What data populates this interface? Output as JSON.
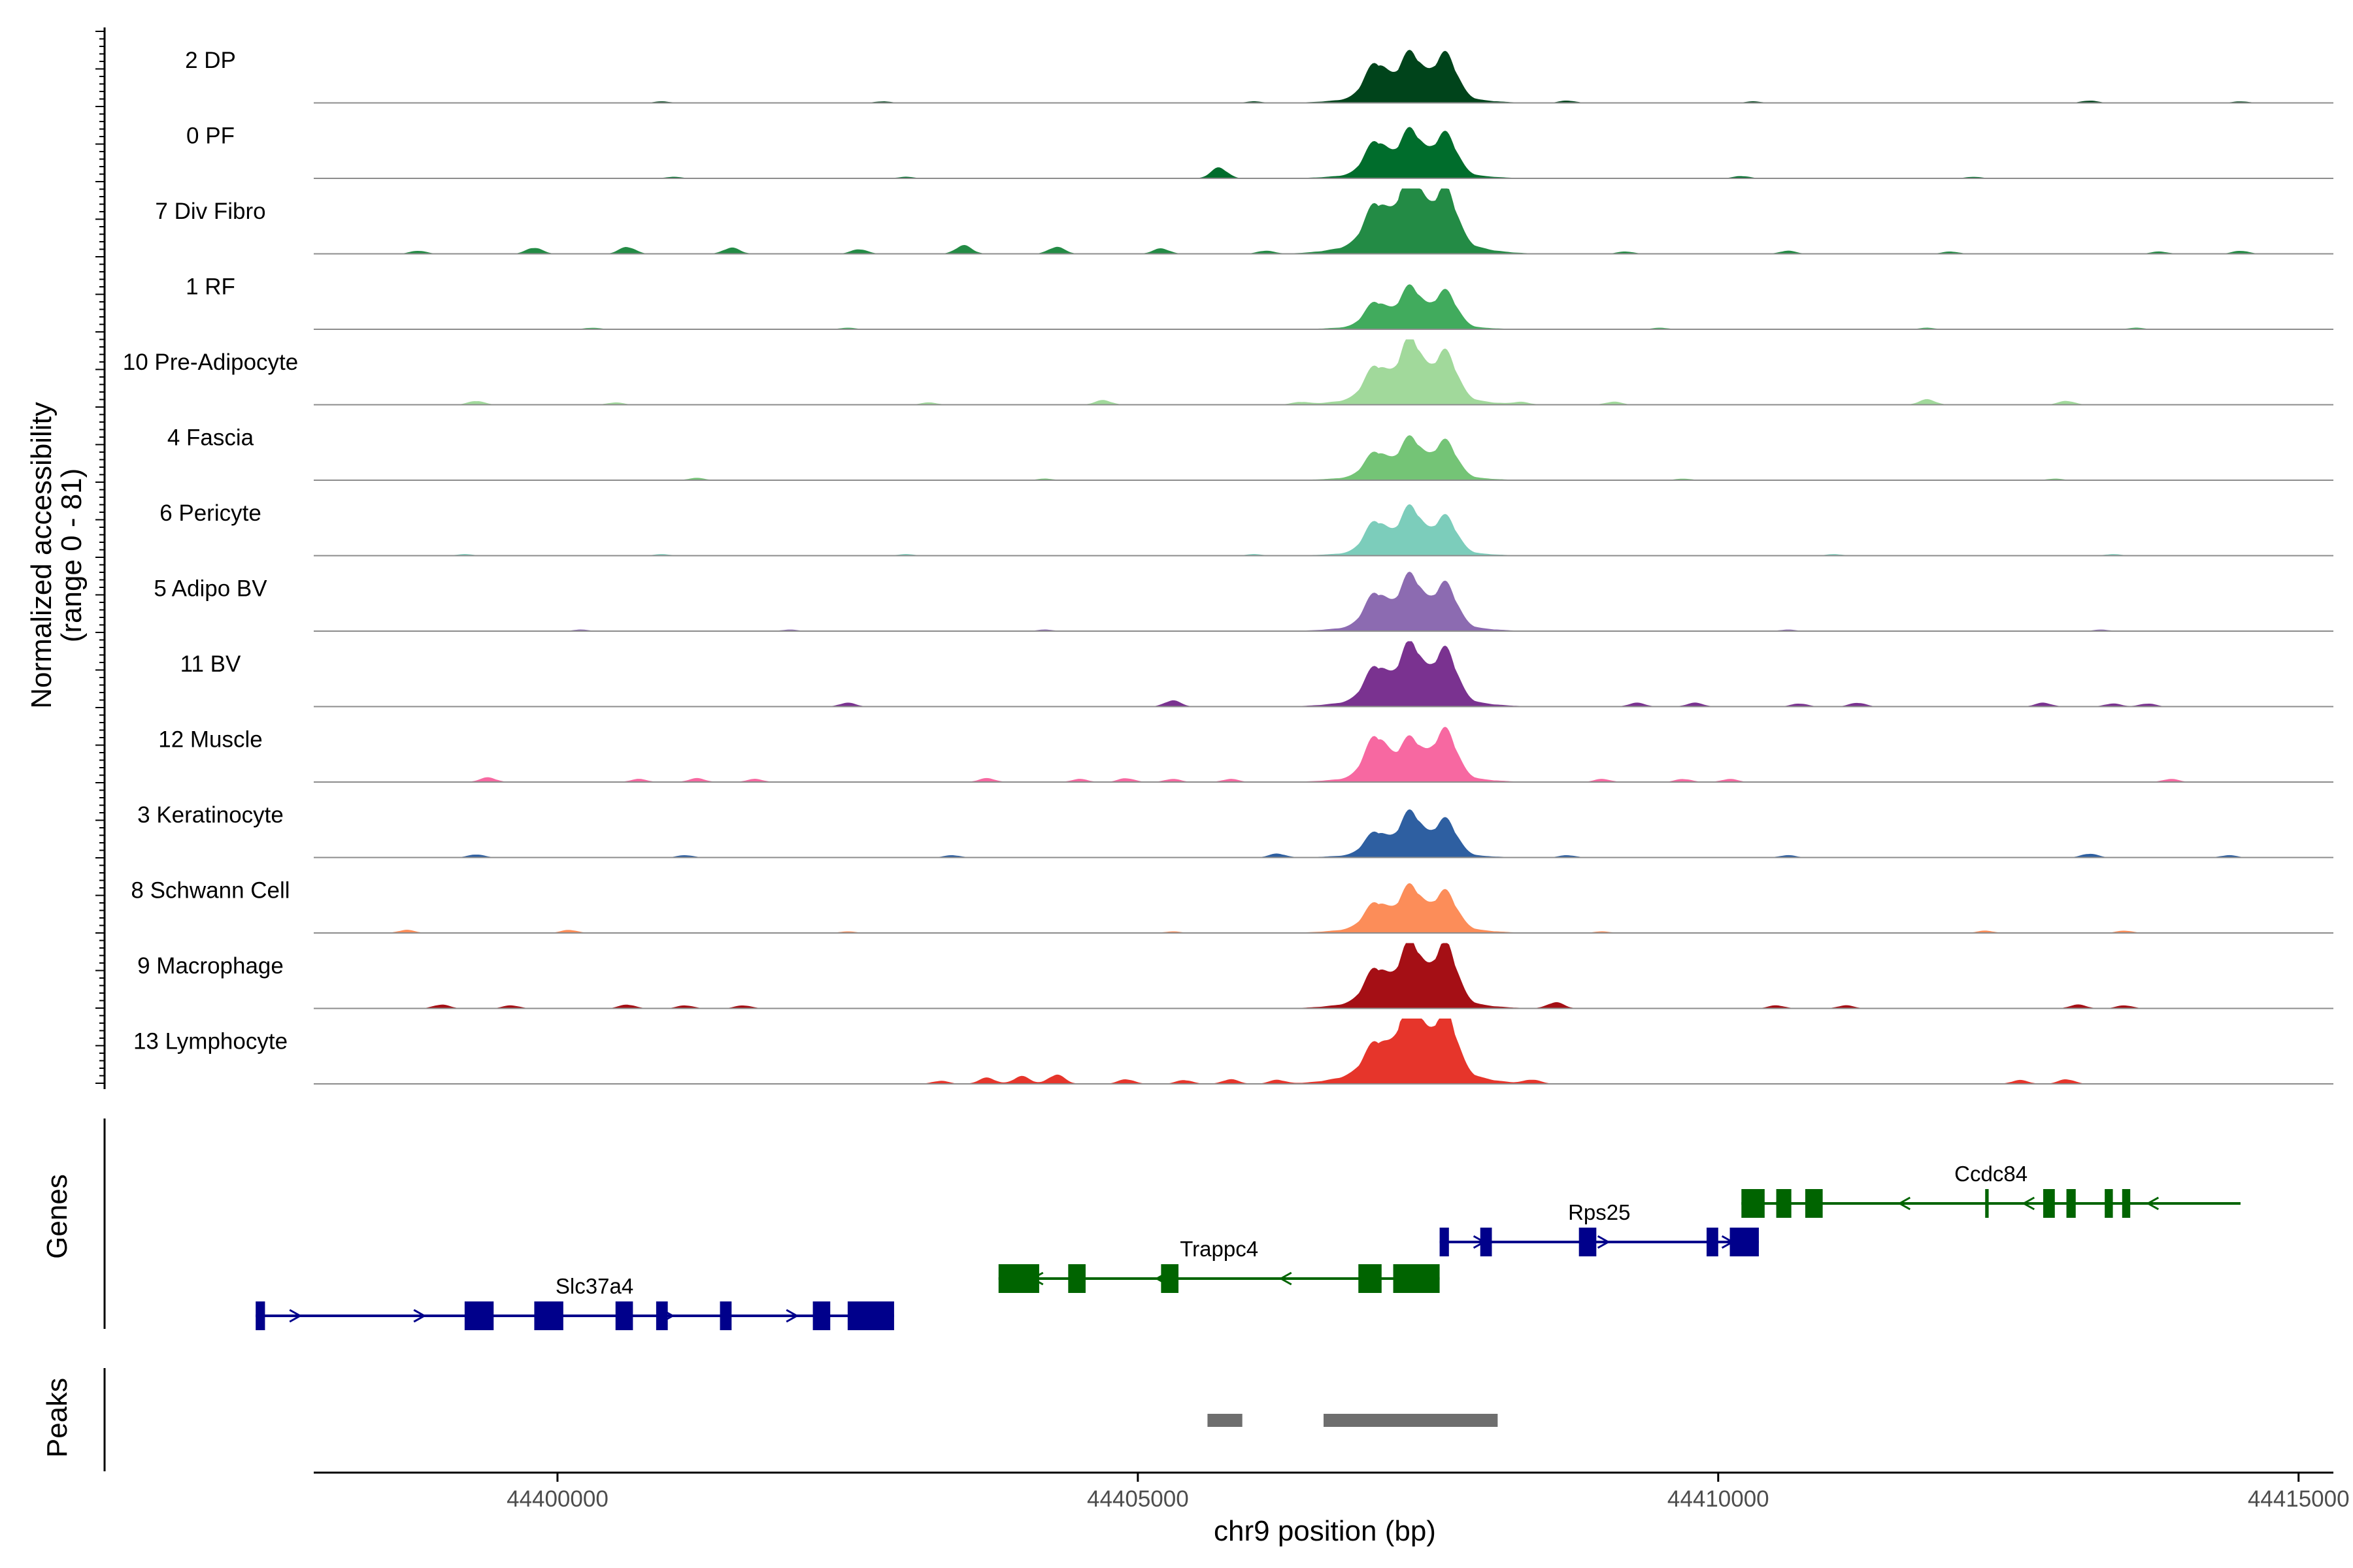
{
  "chart_data": {
    "type": "area",
    "title": "",
    "ylabel": "Normalized accessibility",
    "ylabel_range": "(range 0 - 81)",
    "ylim": [
      0,
      81
    ],
    "xlabel": "chr9 position (bp)",
    "xlim": [
      44397900,
      44415300
    ],
    "xticks": [
      44400000,
      44405000,
      44410000,
      44415000
    ],
    "xtick_labels": [
      "44400000",
      "44405000",
      "44410000",
      "44415000"
    ],
    "peak_centers": [
      44407050,
      44407350,
      44407650
    ],
    "tracks": [
      {
        "name": "2 DP",
        "color": "#00441B",
        "peak_heights": [
          42,
          52,
          54
        ],
        "shoulder": 14,
        "background": [
          [
            44400900,
            2
          ],
          [
            44402800,
            2
          ],
          [
            44406000,
            2
          ],
          [
            44408700,
            3
          ],
          [
            44410300,
            2
          ],
          [
            44413200,
            3
          ],
          [
            44414500,
            2
          ]
        ]
      },
      {
        "name": "0 PF",
        "color": "#006D2C",
        "peak_heights": [
          40,
          52,
          50
        ],
        "shoulder": 12,
        "background": [
          [
            44405700,
            14
          ],
          [
            44401000,
            2
          ],
          [
            44403000,
            2
          ],
          [
            44410200,
            3
          ],
          [
            44412200,
            2
          ]
        ]
      },
      {
        "name": "7 Div Fibro",
        "color": "#238B45",
        "peak_heights": [
          46,
          81,
          66
        ],
        "shoulder": 28,
        "background": [
          [
            44398800,
            4
          ],
          [
            44399800,
            8
          ],
          [
            44400600,
            9
          ],
          [
            44401500,
            8
          ],
          [
            44402600,
            6
          ],
          [
            44403500,
            11
          ],
          [
            44404300,
            9
          ],
          [
            44405200,
            7
          ],
          [
            44406100,
            4
          ],
          [
            44409200,
            3
          ],
          [
            44410600,
            4
          ],
          [
            44412000,
            3
          ],
          [
            44413800,
            3
          ],
          [
            44414500,
            4
          ]
        ]
      },
      {
        "name": "1 RF",
        "color": "#41AB5D",
        "peak_heights": [
          30,
          48,
          44
        ],
        "shoulder": 8,
        "background": [
          [
            44400300,
            2
          ],
          [
            44402500,
            2
          ],
          [
            44409500,
            2
          ],
          [
            44411800,
            2
          ],
          [
            44413600,
            2
          ]
        ]
      },
      {
        "name": "10 Pre-Adipocyte",
        "color": "#A1D99B",
        "peak_heights": [
          38,
          70,
          56
        ],
        "shoulder": 18,
        "background": [
          [
            44399300,
            5
          ],
          [
            44400500,
            3
          ],
          [
            44403200,
            3
          ],
          [
            44404700,
            6
          ],
          [
            44406400,
            3
          ],
          [
            44408300,
            3
          ],
          [
            44409100,
            4
          ],
          [
            44411800,
            7
          ],
          [
            44413000,
            5
          ]
        ]
      },
      {
        "name": "4 Fascia",
        "color": "#74C476",
        "peak_heights": [
          30,
          46,
          44
        ],
        "shoulder": 10,
        "background": [
          [
            44401200,
            3
          ],
          [
            44404200,
            2
          ],
          [
            44409700,
            2
          ],
          [
            44412900,
            2
          ]
        ]
      },
      {
        "name": "6 Pericyte",
        "color": "#7CCDBB",
        "peak_heights": [
          38,
          54,
          44
        ],
        "shoulder": 10,
        "background": [
          [
            44399200,
            2
          ],
          [
            44400900,
            2
          ],
          [
            44403000,
            2
          ],
          [
            44406000,
            2
          ],
          [
            44411000,
            2
          ],
          [
            44413400,
            2
          ]
        ]
      },
      {
        "name": "5 Adipo BV",
        "color": "#8C6BB1",
        "peak_heights": [
          40,
          60,
          52
        ],
        "shoulder": 14,
        "background": [
          [
            44400200,
            2
          ],
          [
            44402000,
            2
          ],
          [
            44404200,
            2
          ],
          [
            44410600,
            2
          ],
          [
            44413300,
            2
          ]
        ]
      },
      {
        "name": "11 BV",
        "color": "#7A3290",
        "peak_heights": [
          40,
          66,
          62
        ],
        "shoulder": 18,
        "background": [
          [
            44402500,
            5
          ],
          [
            44405300,
            8
          ],
          [
            44409300,
            5
          ],
          [
            44409800,
            5
          ],
          [
            44410700,
            4
          ],
          [
            44411200,
            5
          ],
          [
            44412800,
            5
          ],
          [
            44413400,
            4
          ],
          [
            44413700,
            4
          ]
        ]
      },
      {
        "name": "12 Muscle",
        "color": "#F768A1",
        "peak_heights": [
          50,
          44,
          58
        ],
        "shoulder": 14,
        "background": [
          [
            44399400,
            6
          ],
          [
            44400700,
            4
          ],
          [
            44401200,
            5
          ],
          [
            44401700,
            4
          ],
          [
            44403700,
            5
          ],
          [
            44404500,
            4
          ],
          [
            44404900,
            5
          ],
          [
            44405300,
            4
          ],
          [
            44405800,
            4
          ],
          [
            44409000,
            4
          ],
          [
            44409700,
            4
          ],
          [
            44410100,
            4
          ],
          [
            44413900,
            4
          ]
        ]
      },
      {
        "name": "3 Keratinocyte",
        "color": "#2E5FA1",
        "peak_heights": [
          28,
          52,
          44
        ],
        "shoulder": 8,
        "background": [
          [
            44399300,
            4
          ],
          [
            44401100,
            3
          ],
          [
            44403400,
            3
          ],
          [
            44406200,
            5
          ],
          [
            44408700,
            3
          ],
          [
            44410600,
            3
          ],
          [
            44413200,
            5
          ],
          [
            44414400,
            3
          ]
        ]
      },
      {
        "name": "8 Schwann Cell",
        "color": "#FC8D59",
        "peak_heights": [
          30,
          48,
          44
        ],
        "shoulder": 14,
        "background": [
          [
            44398700,
            4
          ],
          [
            44400100,
            4
          ],
          [
            44402500,
            2
          ],
          [
            44405300,
            2
          ],
          [
            44409000,
            2
          ],
          [
            44412300,
            3
          ],
          [
            44413500,
            3
          ]
        ]
      },
      {
        "name": "9 Macrophage",
        "color": "#A50F15",
        "peak_heights": [
          40,
          70,
          72
        ],
        "shoulder": 18,
        "background": [
          [
            44399000,
            5
          ],
          [
            44399600,
            4
          ],
          [
            44400600,
            5
          ],
          [
            44401100,
            4
          ],
          [
            44401600,
            4
          ],
          [
            44408600,
            8
          ],
          [
            44410500,
            4
          ],
          [
            44411100,
            4
          ],
          [
            44413100,
            5
          ],
          [
            44413500,
            4
          ]
        ]
      },
      {
        "name": "13 Lymphocyte",
        "color": "#E6352B",
        "peak_heights": [
          34,
          81,
          74
        ],
        "shoulder": 30,
        "background": [
          [
            44403300,
            4
          ],
          [
            44403700,
            8
          ],
          [
            44404000,
            10
          ],
          [
            44404300,
            12
          ],
          [
            44404900,
            6
          ],
          [
            44405400,
            5
          ],
          [
            44405800,
            6
          ],
          [
            44406200,
            5
          ],
          [
            44408400,
            5
          ],
          [
            44412600,
            5
          ],
          [
            44413000,
            6
          ]
        ]
      }
    ],
    "genes_label": "Genes",
    "genes": [
      {
        "name": "Slc37a4",
        "start": 44397400,
        "end": 44402900,
        "strand": "+",
        "color": "#00008B",
        "row": 2,
        "exons": [
          [
            44397400,
            44397480
          ],
          [
            44399200,
            44399450
          ],
          [
            44399800,
            44400050
          ],
          [
            44400500,
            44400650
          ],
          [
            44400850,
            44400950
          ],
          [
            44401400,
            44401500
          ],
          [
            44402200,
            44402350
          ],
          [
            44402500,
            44402900
          ]
        ]
      },
      {
        "name": "Trappc4",
        "start": 44403800,
        "end": 44407600,
        "strand": "-",
        "color": "#006400",
        "row": 1,
        "exons": [
          [
            44403800,
            44404150
          ],
          [
            44404400,
            44404550
          ],
          [
            44405200,
            44405350
          ],
          [
            44406900,
            44407100
          ],
          [
            44407200,
            44407600
          ]
        ]
      },
      {
        "name": "Rps25",
        "start": 44407600,
        "end": 44410350,
        "strand": "+",
        "color": "#00008B",
        "row": 0.5,
        "exons": [
          [
            44407600,
            44407680
          ],
          [
            44407950,
            44408050
          ],
          [
            44408800,
            44408950
          ],
          [
            44409900,
            44410000
          ],
          [
            44410100,
            44410350
          ]
        ]
      },
      {
        "name": "Ccdc84",
        "start": 44410200,
        "end": 44414500,
        "strand": "-",
        "color": "#006400",
        "row": 0,
        "exons": [
          [
            44410200,
            44410400
          ],
          [
            44410500,
            44410630
          ],
          [
            44410750,
            44410900
          ],
          [
            44412300,
            44412330
          ],
          [
            44412800,
            44412900
          ],
          [
            44413000,
            44413080
          ],
          [
            44413330,
            44413400
          ],
          [
            44413480,
            44413550
          ]
        ]
      }
    ],
    "peaks_label": "Peaks",
    "peaks": [
      [
        44405600,
        44405900
      ],
      [
        44406600,
        44408100
      ]
    ],
    "peaks_color": "#6E6E6E"
  }
}
